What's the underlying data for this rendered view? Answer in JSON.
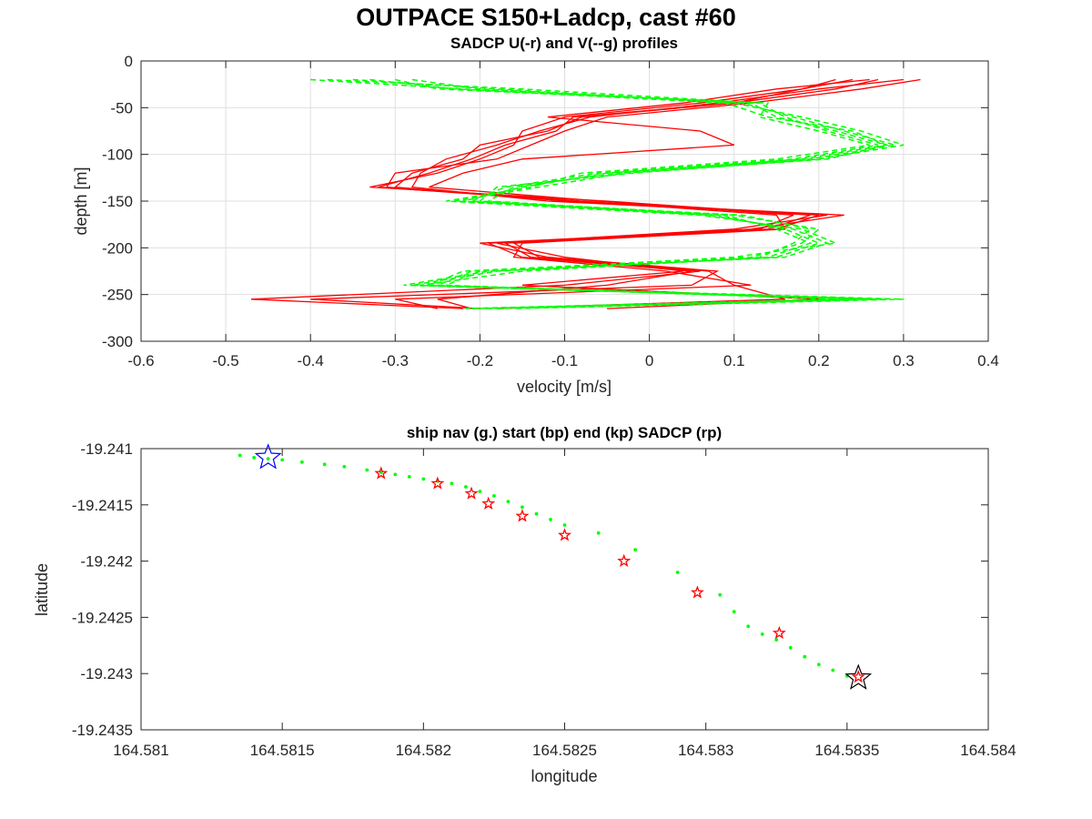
{
  "figure": {
    "suptitle": "OUTPACE S150+Ladcp, cast #60"
  },
  "chart_data": [
    {
      "type": "line",
      "title": "SADCP U(-r) and V(--g) profiles",
      "xlabel": "velocity [m/s]",
      "ylabel": "depth [m]",
      "xlim": [
        -0.6,
        0.4
      ],
      "ylim": [
        -300,
        0
      ],
      "xticks": [
        "-0.6",
        "-0.5",
        "-0.4",
        "-0.3",
        "-0.2",
        "-0.1",
        "0",
        "0.1",
        "0.2",
        "0.3",
        "0.4"
      ],
      "yticks": [
        "0",
        "-50",
        "-100",
        "-150",
        "-200",
        "-250",
        "-300"
      ],
      "grid": true,
      "colors": {
        "u": "#ff0000",
        "v": "#00ff00"
      },
      "depths": [
        -20,
        -30,
        -45,
        -60,
        -75,
        -90,
        -105,
        -120,
        -135,
        -150,
        -165,
        -180,
        -195,
        -210,
        -225,
        -240,
        -255,
        -265
      ],
      "series": [
        {
          "style": "r-",
          "values": [
            0.27,
            0.22,
            0.1,
            -0.08,
            -0.12,
            -0.2,
            -0.22,
            -0.28,
            -0.3,
            -0.1,
            0.23,
            0.12,
            -0.17,
            -0.14,
            0.06,
            -0.1,
            -0.47,
            -0.22
          ]
        },
        {
          "style": "r-",
          "values": [
            0.24,
            0.18,
            0.06,
            -0.1,
            -0.15,
            -0.16,
            -0.2,
            -0.25,
            -0.33,
            -0.05,
            0.19,
            0.14,
            -0.2,
            -0.12,
            0.08,
            0.05,
            -0.4,
            -0.2
          ]
        },
        {
          "style": "r-",
          "values": [
            0.32,
            0.25,
            0.12,
            -0.05,
            -0.1,
            -0.14,
            -0.18,
            -0.3,
            -0.31,
            -0.08,
            0.15,
            0.16,
            -0.15,
            -0.16,
            0.02,
            0.12,
            -0.3,
            -0.25
          ]
        },
        {
          "style": "r-",
          "values": [
            0.3,
            0.2,
            0.08,
            -0.07,
            -0.13,
            -0.18,
            -0.24,
            -0.27,
            -0.28,
            -0.12,
            0.21,
            0.1,
            -0.18,
            -0.1,
            0.04,
            -0.15,
            0.2,
            -0.05
          ]
        },
        {
          "style": "r-",
          "values": [
            0.26,
            0.15,
            0.04,
            -0.12,
            0.06,
            0.1,
            -0.15,
            -0.22,
            -0.26,
            -0.06,
            0.17,
            0.13,
            -0.16,
            -0.13,
            0.07,
            0.1,
            0.16,
            -0.18
          ]
        },
        {
          "style": "r-",
          "values": [
            0.22,
            0.18,
            0.1,
            -0.09,
            -0.11,
            -0.17,
            -0.21,
            -0.26,
            -0.32,
            -0.09,
            0.2,
            0.15,
            -0.19,
            -0.15,
            0.05,
            -0.05,
            -0.25,
            -0.21
          ]
        },
        {
          "style": "g--",
          "values": [
            -0.4,
            -0.22,
            0.12,
            0.15,
            0.22,
            0.28,
            0.18,
            -0.05,
            -0.15,
            -0.22,
            0.08,
            0.16,
            0.2,
            0.15,
            -0.18,
            -0.28,
            0.25,
            -0.2
          ]
        },
        {
          "style": "g--",
          "values": [
            -0.35,
            -0.18,
            0.1,
            0.18,
            0.25,
            0.3,
            0.2,
            -0.02,
            -0.18,
            -0.2,
            0.1,
            0.2,
            0.18,
            0.12,
            -0.22,
            -0.26,
            0.3,
            -0.16
          ]
        },
        {
          "style": "g--",
          "values": [
            -0.3,
            -0.25,
            0.14,
            0.13,
            0.2,
            0.26,
            0.15,
            -0.08,
            -0.14,
            -0.24,
            0.06,
            0.18,
            0.22,
            0.1,
            -0.2,
            -0.24,
            0.22,
            -0.22
          ]
        },
        {
          "style": "g--",
          "values": [
            -0.28,
            -0.2,
            0.11,
            0.17,
            0.23,
            0.29,
            0.19,
            -0.04,
            -0.16,
            -0.19,
            0.09,
            0.15,
            0.19,
            0.14,
            -0.15,
            -0.27,
            0.28,
            -0.18
          ]
        },
        {
          "style": "g--",
          "values": [
            -0.38,
            -0.15,
            0.13,
            0.16,
            0.21,
            0.27,
            0.17,
            -0.06,
            -0.17,
            -0.21,
            0.07,
            0.17,
            0.21,
            0.16,
            -0.19,
            -0.29,
            0.26,
            -0.19
          ]
        },
        {
          "style": "g--",
          "values": [
            -0.33,
            -0.23,
            0.09,
            0.14,
            0.24,
            0.28,
            0.21,
            -0.03,
            -0.13,
            -0.23,
            0.11,
            0.19,
            0.17,
            0.13,
            -0.21,
            -0.25,
            0.24,
            -0.21
          ]
        }
      ]
    },
    {
      "type": "scatter",
      "title": "ship nav (g.) start (bp) end (kp) SADCP (rp)",
      "xlabel": "longitude",
      "ylabel": "latitude",
      "xlim": [
        164.581,
        164.584
      ],
      "ylim": [
        -19.2435,
        -19.241
      ],
      "xticks": [
        "164.581",
        "164.5815",
        "164.582",
        "164.5825",
        "164.583",
        "164.5835",
        "164.584"
      ],
      "yticks": [
        "-19.241",
        "-19.2415",
        "-19.242",
        "-19.2425",
        "-19.243",
        "-19.2435"
      ],
      "grid": false,
      "colors": {
        "nav": "#00ff00",
        "start": "#0000ff",
        "end": "#000000",
        "sadcp": "#ff0000"
      },
      "series": [
        {
          "role": "nav",
          "x": [
            164.58135,
            164.5814,
            164.58145,
            164.5815,
            164.58157,
            164.58165,
            164.58172,
            164.5818,
            164.58185,
            164.5819,
            164.58195,
            164.582,
            164.58205,
            164.5821,
            164.58215,
            164.5822,
            164.58225,
            164.5823,
            164.58235,
            164.5824,
            164.58245,
            164.5825,
            164.58262,
            164.58275,
            164.5829,
            164.58305,
            164.5831,
            164.58315,
            164.5832,
            164.58325,
            164.5833,
            164.58335,
            164.5834,
            164.58345,
            164.5835
          ],
          "y": [
            -19.24106,
            -19.24108,
            -19.24109,
            -19.2411,
            -19.24112,
            -19.24114,
            -19.24116,
            -19.24119,
            -19.24121,
            -19.24123,
            -19.24125,
            -19.24127,
            -19.24129,
            -19.24131,
            -19.24134,
            -19.24138,
            -19.24142,
            -19.24147,
            -19.24152,
            -19.24158,
            -19.24163,
            -19.24168,
            -19.24175,
            -19.2419,
            -19.2421,
            -19.2423,
            -19.24245,
            -19.24258,
            -19.24265,
            -19.2427,
            -19.24277,
            -19.24285,
            -19.24292,
            -19.24297,
            -19.24302
          ]
        },
        {
          "role": "start",
          "x": [
            164.58145
          ],
          "y": [
            -19.24108
          ]
        },
        {
          "role": "sadcp",
          "x": [
            164.58185,
            164.58205,
            164.58217,
            164.58223,
            164.58235,
            164.5825,
            164.58271,
            164.58297,
            164.58326,
            164.58354
          ],
          "y": [
            -19.24122,
            -19.24131,
            -19.2414,
            -19.24149,
            -19.2416,
            -19.24177,
            -19.242,
            -19.24228,
            -19.24264,
            -19.24303
          ]
        },
        {
          "role": "end",
          "x": [
            164.58354
          ],
          "y": [
            -19.24304
          ]
        }
      ]
    }
  ]
}
